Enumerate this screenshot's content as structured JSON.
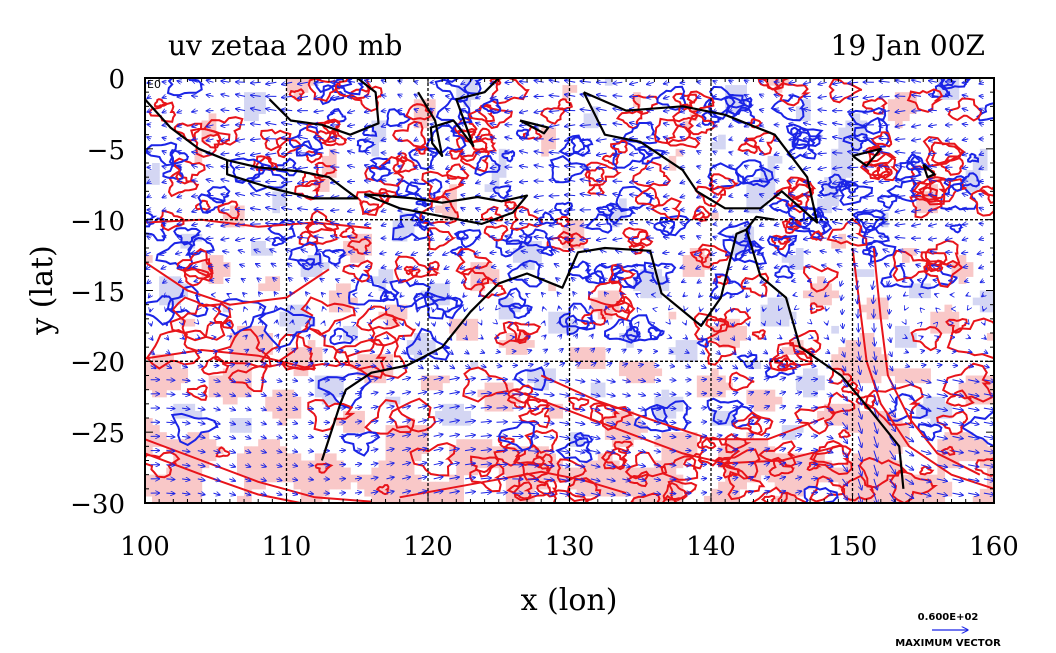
{
  "chart_data": {
    "type": "vector_contour_map",
    "title": "uv zetaa 200 mb",
    "date": "19 Jan 00Z",
    "xlabel": "x (lon)",
    "ylabel": "y (lat)",
    "xlim": [
      100,
      160
    ],
    "ylim": [
      -30,
      0
    ],
    "xticks": [
      100,
      110,
      120,
      130,
      140,
      150,
      160
    ],
    "yticks": [
      0,
      -5,
      -10,
      -15,
      -20,
      -25,
      -30
    ],
    "x_tick_labels": [
      "100",
      "110",
      "120",
      "130",
      "140",
      "150",
      "160"
    ],
    "y_tick_labels": [
      "0",
      "−5",
      "−10",
      "−15",
      "−20",
      "−25",
      "−30"
    ],
    "gridlines_dashed": {
      "x": [
        110,
        120,
        130,
        140,
        150
      ],
      "y": [
        -10,
        -20
      ]
    },
    "corner_label": "E0",
    "max_vector_value": "0.600E+02",
    "max_vector_label": "MAXIMUM VECTOR",
    "colors": {
      "positive_contour": "#e8141a",
      "negative_contour": "#1b24e6",
      "positive_fill": "#f9c8c8",
      "negative_fill": "#d4d6f3",
      "vector": "#1b24e6",
      "coast": "#000000"
    },
    "coastline_lonlat": [
      [
        [
          112.5,
          -27
        ],
        [
          113.8,
          -23
        ],
        [
          114.2,
          -22
        ],
        [
          116,
          -20.8
        ],
        [
          118.5,
          -20.3
        ],
        [
          121,
          -19
        ],
        [
          123,
          -16.5
        ],
        [
          125,
          -14.5
        ],
        [
          127,
          -13.8
        ],
        [
          129.5,
          -14.8
        ],
        [
          130.6,
          -12.3
        ],
        [
          132.5,
          -12
        ],
        [
          135.7,
          -12.2
        ],
        [
          136.5,
          -15.2
        ],
        [
          139.3,
          -17.5
        ],
        [
          140.7,
          -15.5
        ],
        [
          141.8,
          -11
        ],
        [
          142.5,
          -10.7
        ],
        [
          143.5,
          -14
        ],
        [
          145.3,
          -15.5
        ],
        [
          146.3,
          -19
        ],
        [
          149.2,
          -21
        ],
        [
          151.3,
          -23.5
        ],
        [
          153.3,
          -26
        ],
        [
          153.6,
          -29
        ]
      ],
      [
        [
          131,
          -1
        ],
        [
          134,
          -2.3
        ],
        [
          138,
          -2
        ],
        [
          141,
          -2.6
        ],
        [
          144.5,
          -4
        ],
        [
          146.8,
          -7
        ],
        [
          147.5,
          -10.2
        ],
        [
          145,
          -8
        ],
        [
          143.5,
          -9.2
        ],
        [
          141,
          -9.2
        ],
        [
          139,
          -8
        ],
        [
          138,
          -6.5
        ],
        [
          135,
          -4.5
        ],
        [
          132.5,
          -4
        ],
        [
          131,
          -1
        ]
      ],
      [
        [
          105.8,
          -5.8
        ],
        [
          108,
          -6.3
        ],
        [
          111,
          -6.6
        ],
        [
          113,
          -7
        ],
        [
          115,
          -8.5
        ],
        [
          112,
          -8.5
        ],
        [
          109,
          -7.8
        ],
        [
          105.8,
          -6.8
        ],
        [
          105.8,
          -5.8
        ]
      ],
      [
        [
          108.8,
          -1.5
        ],
        [
          110.3,
          -3
        ],
        [
          112.5,
          -3.3
        ],
        [
          114.5,
          -4
        ],
        [
          116.5,
          -3.2
        ],
        [
          116.3,
          -1
        ],
        [
          115,
          0
        ]
      ],
      [
        [
          100,
          -1.5
        ],
        [
          101.8,
          -3.5
        ],
        [
          103.8,
          -5
        ],
        [
          105.8,
          -5.8
        ]
      ],
      [
        [
          119.3,
          -1
        ],
        [
          120.5,
          -3
        ],
        [
          121,
          -5.5
        ],
        [
          120.3,
          -4.6
        ],
        [
          120.2,
          -3.5
        ],
        [
          121.8,
          -3
        ],
        [
          123.2,
          -4.8
        ],
        [
          122,
          -1.5
        ],
        [
          124,
          -1
        ],
        [
          125,
          0
        ]
      ],
      [
        [
          115.5,
          -8.2
        ],
        [
          119,
          -8.5
        ],
        [
          121,
          -8.8
        ],
        [
          123.5,
          -8.4
        ],
        [
          125.2,
          -8.7
        ],
        [
          127,
          -8.3
        ],
        [
          126,
          -9.5
        ],
        [
          123.8,
          -10.3
        ],
        [
          118,
          -9.2
        ],
        [
          115.5,
          -8.2
        ]
      ],
      [
        [
          126.5,
          -3
        ],
        [
          128.5,
          -3.5
        ],
        [
          128.2,
          -3.9
        ],
        [
          126.5,
          -3
        ]
      ],
      [
        [
          150,
          -5.5
        ],
        [
          152,
          -5
        ],
        [
          151,
          -6.2
        ],
        [
          150,
          -5.5
        ]
      ],
      [
        [
          155,
          -6.1
        ],
        [
          155.8,
          -6.8
        ],
        [
          155.3,
          -7
        ],
        [
          155,
          -6.1
        ]
      ],
      [
        [
          142.5,
          -10.7
        ],
        [
          143.2,
          -9.8
        ],
        [
          144.5,
          -10
        ]
      ]
    ],
    "vector_field_description": "wind vectors on regular grid; easterlies north of 12S, westerlies south of 22S, strong northerly/southerly jet near 150-152E"
  }
}
